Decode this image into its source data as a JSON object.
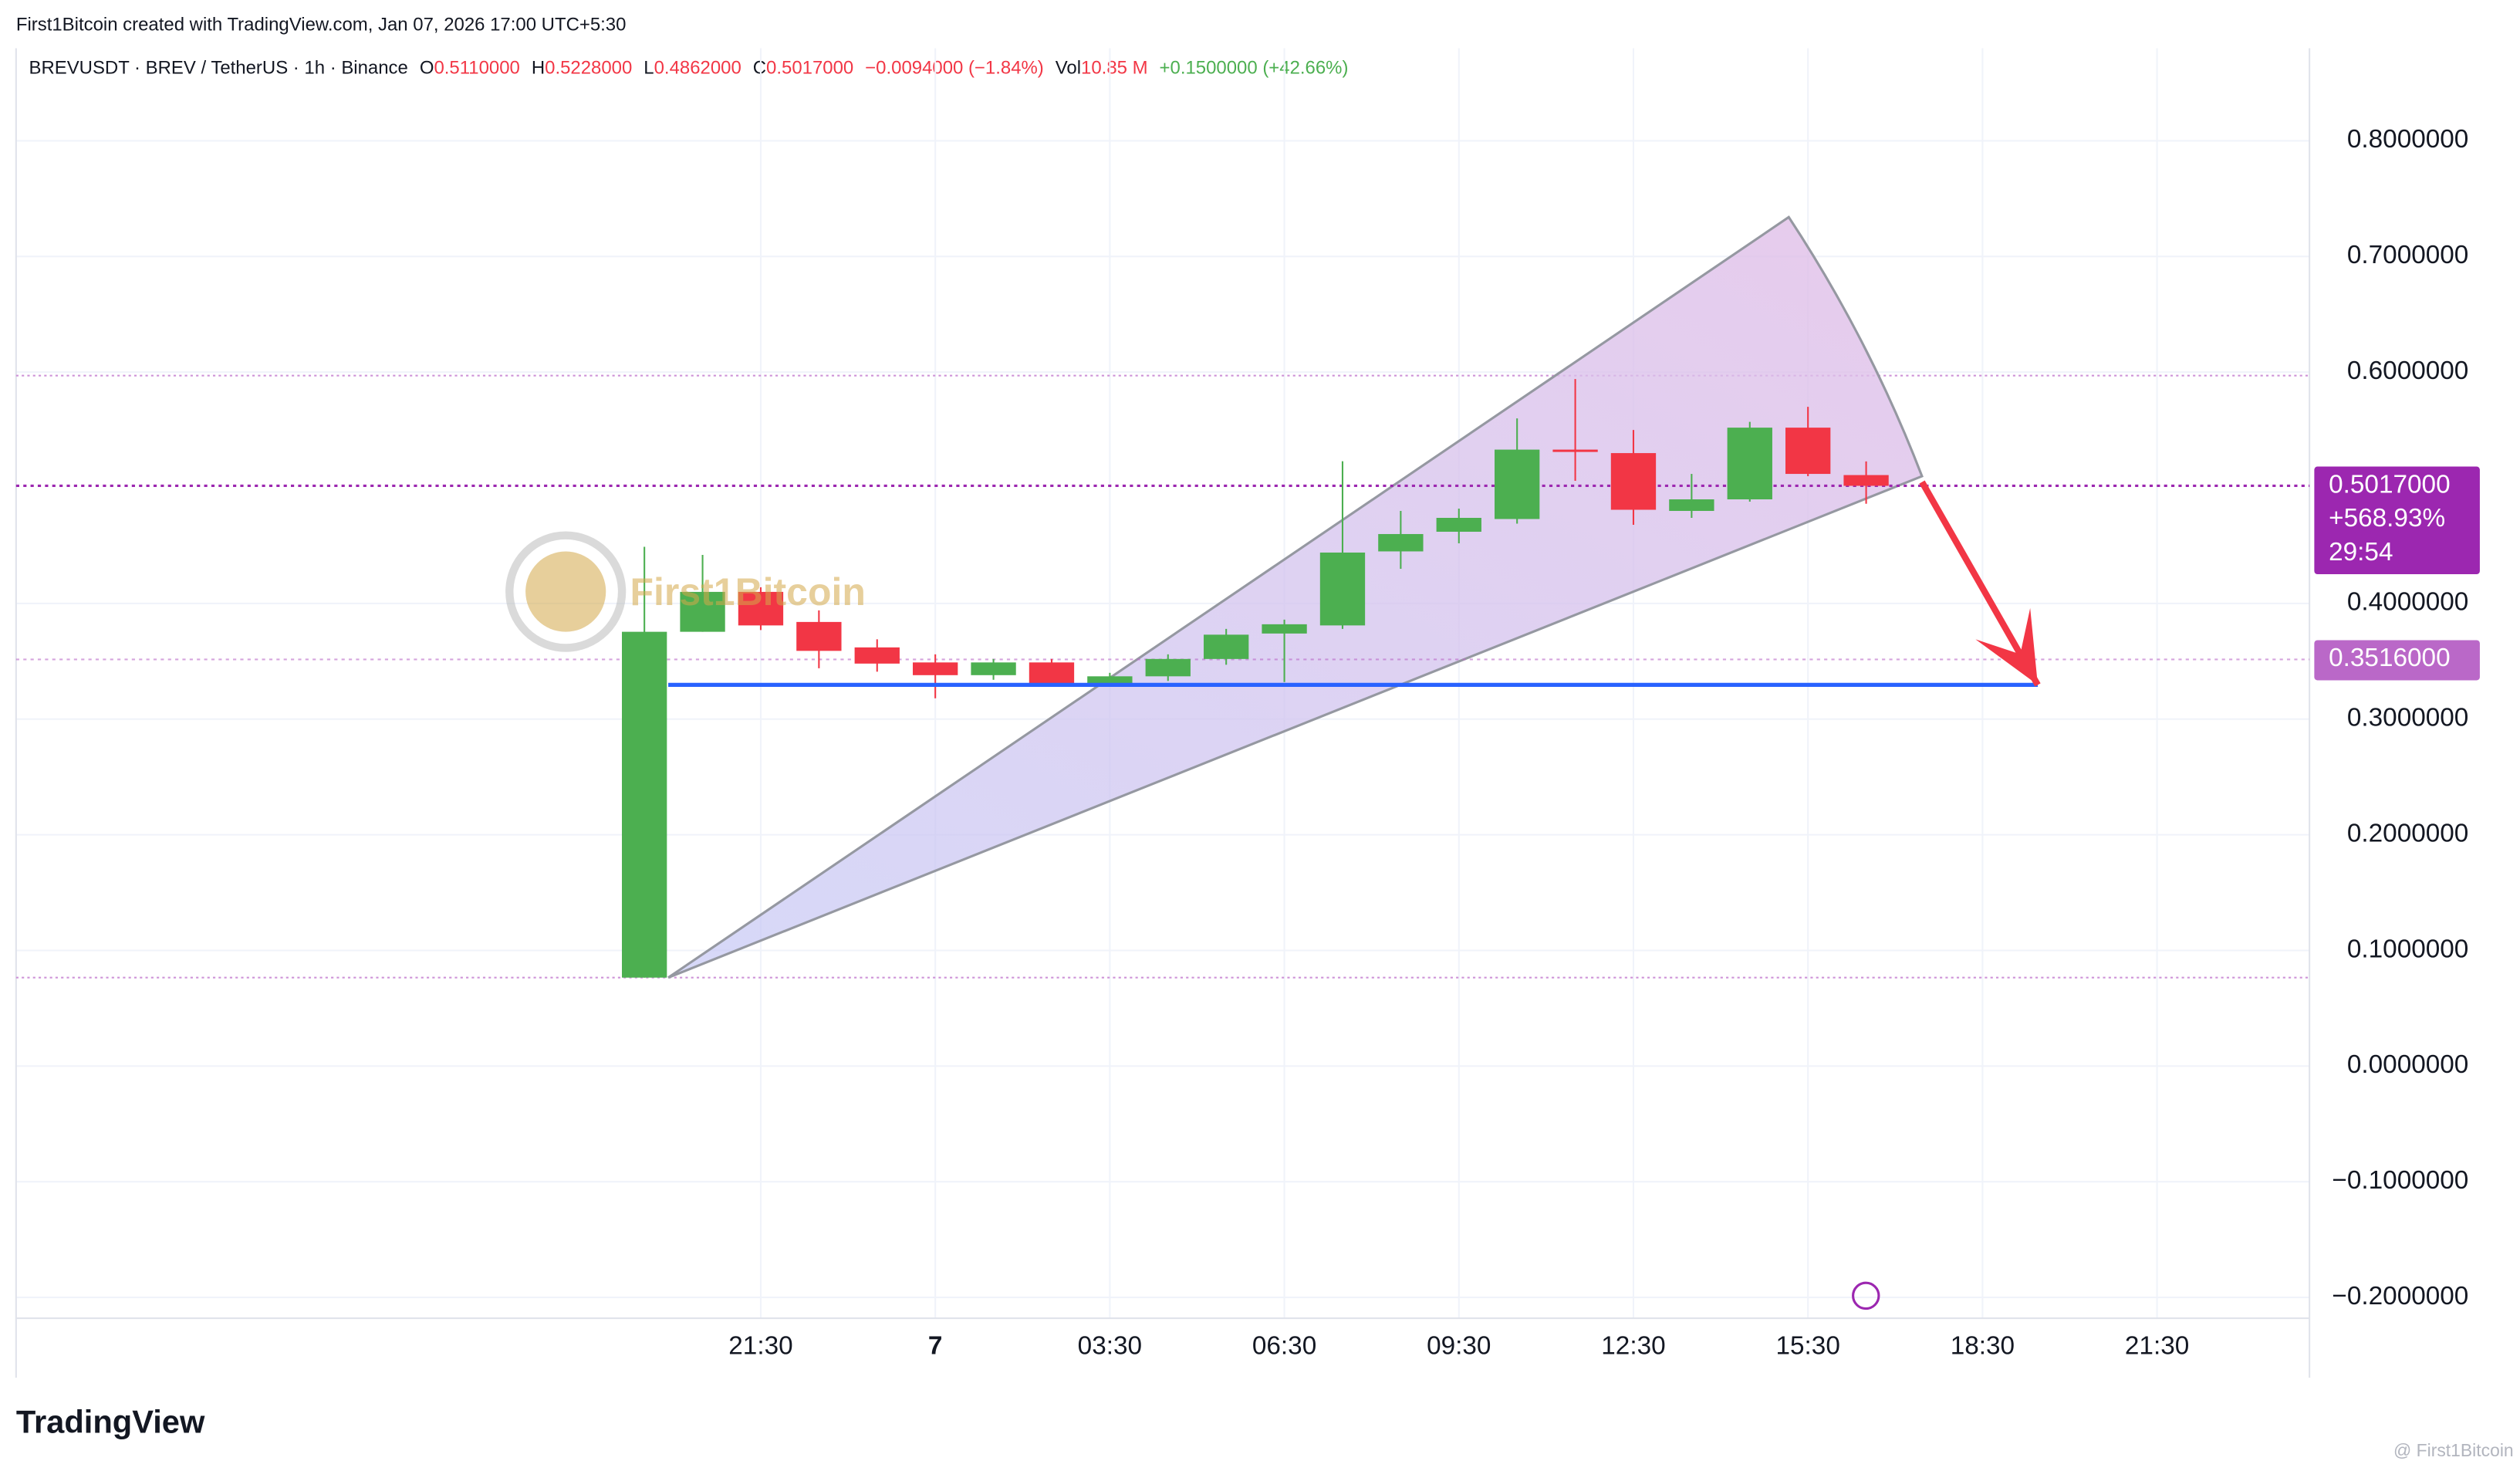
{
  "header": {
    "attribution": "First1Bitcoin created with TradingView.com, Jan 07, 2026 17:00 UTC+5:30",
    "symbol": "BREVUSDT · BREV / TetherUS · 1h · Binance",
    "o_label": "O",
    "open": "0.5110000",
    "h_label": "H",
    "high": "0.5228000",
    "l_label": "L",
    "low": "0.4862000",
    "c_label": "C",
    "close": "0.5017000",
    "change": "−0.0094000 (−1.84%)",
    "vol_label": "Vol",
    "volume": "10.85 M",
    "vol_change": "+0.1500000 (+42.66%)"
  },
  "watermark": "First1Bitcoin",
  "footer": {
    "logo": "TradingView",
    "credit": "@ First1Bitcoin"
  },
  "chart_data": {
    "type": "candlestick",
    "open": [
      0.0765,
      0.3755,
      0.41,
      0.384,
      0.362,
      0.349,
      0.338,
      0.349,
      0.331,
      0.337,
      0.352,
      0.374,
      0.381,
      0.445,
      0.462,
      0.473,
      0.533,
      0.53,
      0.48,
      0.49,
      0.552,
      0.511
    ],
    "high": [
      0.449,
      0.442,
      0.414,
      0.394,
      0.369,
      0.356,
      0.352,
      0.352,
      0.34,
      0.356,
      0.378,
      0.386,
      0.523,
      0.48,
      0.482,
      0.56,
      0.594,
      0.55,
      0.512,
      0.557,
      0.57,
      0.5228
    ],
    "low": [
      0.0765,
      0.3755,
      0.377,
      0.344,
      0.341,
      0.318,
      0.334,
      0.329,
      0.33,
      0.333,
      0.347,
      0.332,
      0.378,
      0.43,
      0.452,
      0.469,
      0.506,
      0.468,
      0.474,
      0.488,
      0.51,
      0.4862
    ],
    "close": [
      0.3755,
      0.41,
      0.381,
      0.359,
      0.348,
      0.338,
      0.349,
      0.331,
      0.337,
      0.352,
      0.373,
      0.382,
      0.444,
      0.46,
      0.474,
      0.533,
      0.531,
      0.481,
      0.49,
      0.552,
      0.512,
      0.5017
    ],
    "up_color": "#4caf50",
    "down_color": "#f23645",
    "xlim": [
      -10.8,
      28.62
    ],
    "xticks": [
      {
        "value": 2,
        "label": "21:30"
      },
      {
        "value": 5,
        "label": "7"
      },
      {
        "value": 8,
        "label": "03:30"
      },
      {
        "value": 11,
        "label": "06:30"
      },
      {
        "value": 14,
        "label": "09:30"
      },
      {
        "value": 17,
        "label": "12:30"
      },
      {
        "value": 20,
        "label": "15:30"
      },
      {
        "value": 23,
        "label": "18:30"
      },
      {
        "value": 26,
        "label": "21:30"
      }
    ],
    "ylim": [
      -0.218,
      0.88
    ],
    "yticks": [
      {
        "value": -0.2,
        "label": "−0.2000000"
      },
      {
        "value": -0.1,
        "label": "−0.1000000"
      },
      {
        "value": 0,
        "label": "0.0000000"
      },
      {
        "value": 0.1,
        "label": "0.1000000"
      },
      {
        "value": 0.2,
        "label": "0.2000000"
      },
      {
        "value": 0.3,
        "label": "0.3000000"
      },
      {
        "value": 0.4,
        "label": "0.4000000"
      },
      {
        "value": 0.6,
        "label": "0.6000000"
      },
      {
        "value": 0.7,
        "label": "0.7000000"
      },
      {
        "value": 0.8,
        "label": "0.8000000"
      }
    ],
    "grid": true,
    "level_lines": [
      0.597,
      0.0765
    ],
    "price_labels": [
      {
        "value": 0.5017,
        "label": "0.5017000",
        "change": "+568.93%",
        "countdown": "29:54",
        "color": "#9c27b0"
      },
      {
        "value": 0.3516,
        "label": "0.3516000",
        "color": "#ba68c8"
      }
    ],
    "drawings": {
      "wedge": {
        "x": [
          0.41,
          19.67,
          21.96
        ],
        "y": [
          0.0765,
          0.734,
          0.51
        ],
        "color": "#9598a1"
      },
      "trend_line": {
        "x": [
          0.41,
          23.95
        ],
        "y": [
          0.3296,
          0.3296
        ],
        "color": "#2962ff"
      },
      "arrow": {
        "x": [
          21.96,
          23.95
        ],
        "y": [
          0.505,
          0.3296
        ],
        "color": "#f23645"
      }
    }
  }
}
